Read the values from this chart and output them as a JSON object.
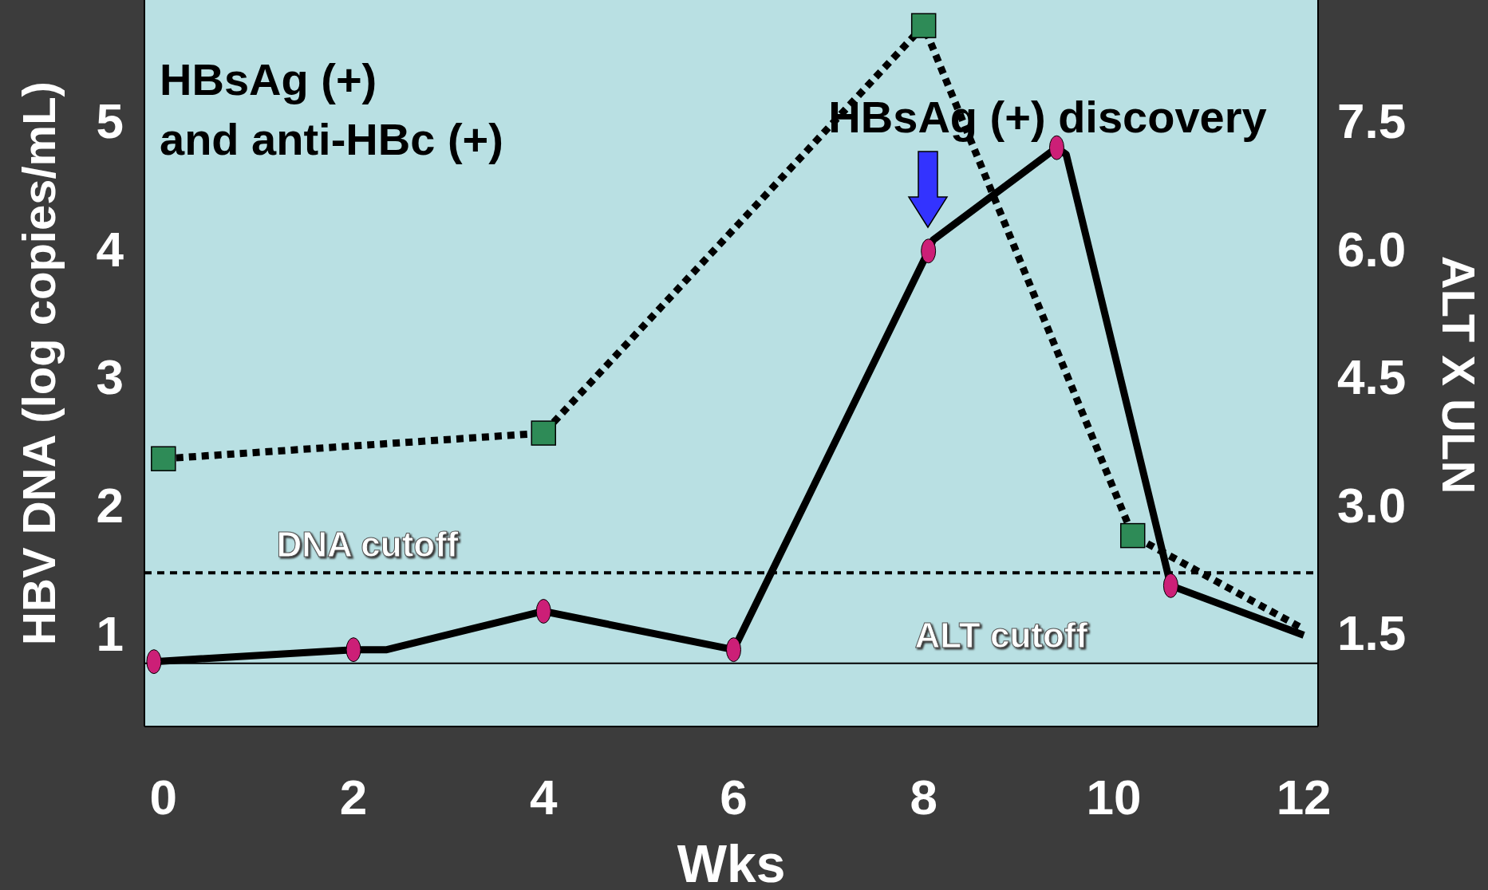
{
  "chart_data": {
    "type": "line",
    "xlabel": "Wks",
    "ylabel": "HBV DNA (log copies/mL)",
    "y2label": "ALT X ULN",
    "xlim": [
      -0.2,
      12.15
    ],
    "xticks": [
      0,
      2,
      4,
      6,
      8,
      10,
      12
    ],
    "ylim": [
      0.27,
      5.94
    ],
    "yticks": [
      1,
      2,
      3,
      4,
      5
    ],
    "y2lim": [
      0.4,
      8.91
    ],
    "y2ticks": [
      {
        "value": 1.5,
        "label": "1.5"
      },
      {
        "value": 3,
        "label": "3.0"
      },
      {
        "value": 4.5,
        "label": "4.5"
      },
      {
        "value": 6,
        "label": "6.0"
      },
      {
        "value": 7.5,
        "label": "7.5"
      }
    ],
    "series": [
      {
        "x": [
          0,
          4,
          8,
          10.2,
          12
        ],
        "values": [
          2.36,
          2.56,
          5.74,
          1.76,
          1.03
        ],
        "color": "#000000",
        "colors": [
          "#2e8b57",
          "#2e8b57",
          "#2e8b57",
          "#2e8b57",
          null
        ],
        "line_style": "dotted",
        "marker": "square"
      },
      {
        "x": [
          -0.1,
          2,
          2.35,
          4,
          6,
          8.05,
          8.1,
          9.4,
          9.5,
          10.6,
          12
        ],
        "values": [
          1.16,
          1.3,
          1.3,
          1.75,
          1.3,
          5.97,
          6.1,
          7.18,
          7.1,
          2.05,
          1.47
        ],
        "color": "#000000",
        "colors": [
          "#cc1f77",
          "#cc1f77",
          null,
          "#cc1f77",
          "#cc1f77",
          "#cc1f77",
          null,
          "#cc1f77",
          null,
          "#cc1f77",
          null
        ],
        "line_style": "solid",
        "marker": "circle",
        "axis": "y2"
      }
    ],
    "ref_lines": [
      {
        "axis": "y",
        "value": 1.47,
        "label": "DNA cutoff",
        "line_style": "dotted",
        "color": "#000000"
      },
      {
        "axis": "y2",
        "value": 1.14,
        "label": "ALT cutoff",
        "line_style": "solid",
        "color": "#000000"
      }
    ],
    "annotations": [
      "HBsAg (+)\nand anti-HBc (+)",
      "HBsAg (+) discovery"
    ],
    "grid": false
  }
}
